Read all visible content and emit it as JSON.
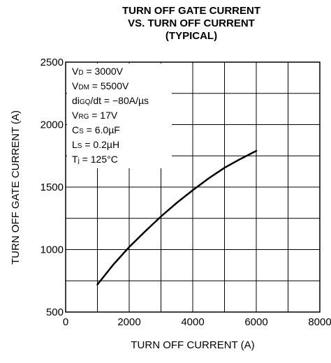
{
  "chart_data": {
    "type": "line",
    "title_lines": [
      "TURN OFF GATE CURRENT",
      "VS. TURN OFF CURRENT",
      "(TYPICAL)"
    ],
    "xlabel": "TURN OFF CURRENT  (A)",
    "ylabel": "TURN OFF GATE CURRENT  (A)",
    "xlim": [
      0,
      8000
    ],
    "ylim": [
      500,
      2500
    ],
    "xticks": [
      0,
      2000,
      4000,
      6000,
      8000
    ],
    "yticks": [
      500,
      1000,
      1500,
      2000,
      2500
    ],
    "xtick_labels": [
      "0",
      "2000",
      "4000",
      "6000",
      "8000"
    ],
    "ytick_labels": [
      "500",
      "1000",
      "1500",
      "2000",
      "2500"
    ],
    "grid": true,
    "conditions": [
      {
        "symbol": "V",
        "sub": "D",
        "value": " = 3000V"
      },
      {
        "symbol": "V",
        "sub": "DM",
        "value": " = 5500V"
      },
      {
        "symbol": "di",
        "sub": "GQ",
        "value": "/dt = −80A/µs"
      },
      {
        "symbol": "V",
        "sub": "RG",
        "value": " = 17V"
      },
      {
        "symbol": "C",
        "sub": "S",
        "value": " = 6.0µF"
      },
      {
        "symbol": "L",
        "sub": "S",
        "value": " = 0.2µH"
      },
      {
        "symbol": "T",
        "sub": "j",
        "value": " = 125°C"
      }
    ],
    "series": [
      {
        "x": [
          1000,
          1500,
          2000,
          2500,
          3000,
          3500,
          4000,
          4500,
          5000,
          5500,
          6000
        ],
        "y": [
          720,
          880,
          1020,
          1145,
          1265,
          1375,
          1475,
          1570,
          1655,
          1725,
          1790
        ]
      }
    ]
  }
}
